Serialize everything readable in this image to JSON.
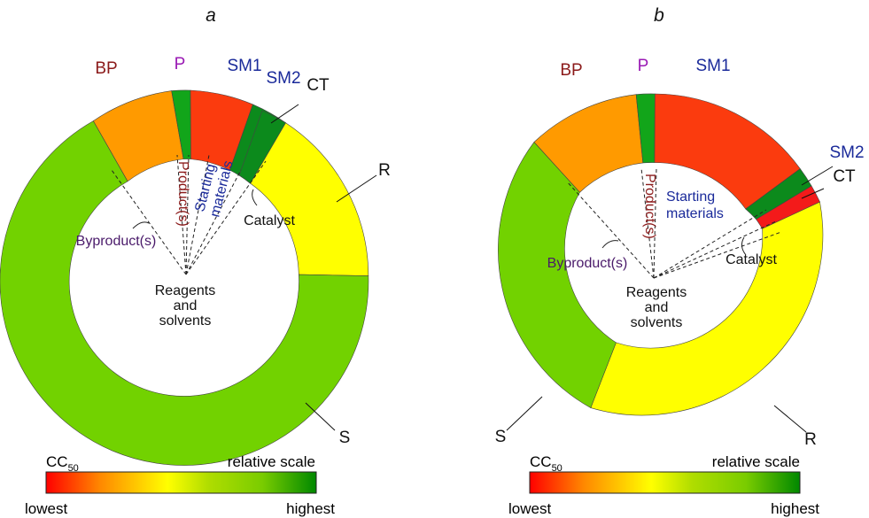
{
  "colors": {
    "BP": "#ff9a00",
    "P": "#12a51a",
    "SM1": "#fb3b0e",
    "SM2": "#0c8a1c",
    "CT_a": "#0c8a1c",
    "CT_b": "#f31a1a",
    "R": "#ffff00",
    "S": "#72d200",
    "label_byproduct": "#8b1a1a",
    "label_product": "#a02020",
    "label_starting": "#1a2a9a",
    "label_catalyst": "#111111",
    "label_byproduct_inner": "#4a1a6a",
    "label_P": "#8a1ab0"
  },
  "panels": [
    {
      "title": "a",
      "segment_labels": {
        "BP": "BP",
        "P": "P",
        "SM1": "SM1",
        "SM2": "SM2",
        "CT": "CT",
        "R": "R",
        "S": "S"
      },
      "inner": {
        "product": "Product(s)",
        "starting1": "Starting",
        "starting2": "materials",
        "catalyst": "Catalyst",
        "byproduct": "Byproduct(s)",
        "reagents1": "Reagents",
        "reagents2": "and",
        "reagents3": "solvents"
      }
    },
    {
      "title": "b",
      "segment_labels": {
        "BP": "BP",
        "P": "P",
        "SM1": "SM1",
        "SM2": "SM2",
        "CT": "CT",
        "R": "R",
        "S": "S"
      },
      "inner": {
        "product": "Product(s)",
        "starting1": "Starting",
        "starting2": "materials",
        "catalyst": "Catalyst",
        "byproduct": "Byproduct(s)",
        "reagents1": "Reagents",
        "reagents2": "and",
        "reagents3": "solvents"
      }
    }
  ],
  "scale": {
    "cc50": "CC",
    "cc50_sub": "50",
    "relative": "relative scale",
    "lowest": "lowest",
    "highest": "highest"
  },
  "gradient": [
    "#ff0000",
    "#ff8800",
    "#ffff00",
    "#b0dd00",
    "#7acc00",
    "#008800"
  ]
}
